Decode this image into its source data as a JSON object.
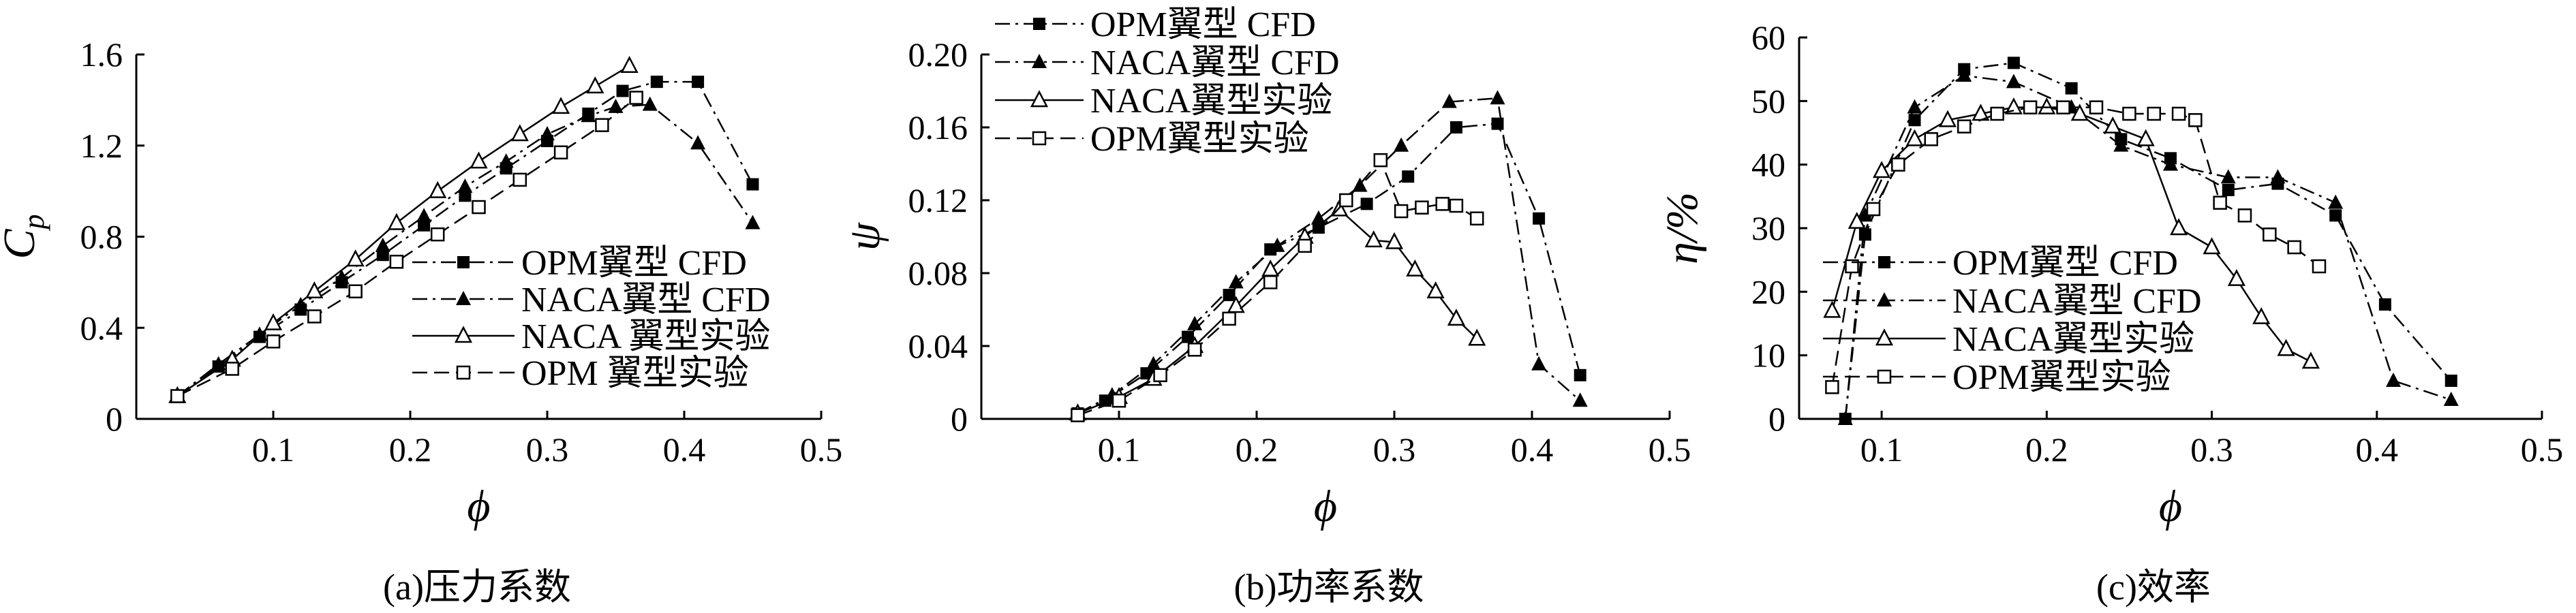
{
  "chart_data": [
    {
      "id": "a",
      "type": "scatter",
      "caption": "(a)压力系数",
      "xlabel": "ϕ",
      "ylabel": "Cp",
      "xlim": [
        0,
        0.5
      ],
      "ylim": [
        0,
        1.6
      ],
      "xticks": [
        {
          "v": 0.1,
          "label": "0.1"
        },
        {
          "v": 0.2,
          "label": "0.2"
        },
        {
          "v": 0.3,
          "label": "0.3"
        },
        {
          "v": 0.4,
          "label": "0.4"
        },
        {
          "v": 0.5,
          "label": "0.5"
        }
      ],
      "yticks": [
        {
          "v": 0,
          "label": "0"
        },
        {
          "v": 0.4,
          "label": "0.4"
        },
        {
          "v": 0.8,
          "label": "0.8"
        },
        {
          "v": 1.2,
          "label": "1.2"
        },
        {
          "v": 1.6,
          "label": "1.6"
        }
      ],
      "grid": false,
      "legend_position": "lower-right",
      "series": [
        {
          "name": "OPM翼型 CFD",
          "marker": "square-filled",
          "dash": "dashdot",
          "x": [
            0.03,
            0.06,
            0.09,
            0.12,
            0.15,
            0.18,
            0.21,
            0.24,
            0.27,
            0.3,
            0.33,
            0.355,
            0.38,
            0.41,
            0.45
          ],
          "y": [
            0.1,
            0.23,
            0.36,
            0.48,
            0.6,
            0.72,
            0.85,
            0.98,
            1.1,
            1.22,
            1.34,
            1.44,
            1.48,
            1.48,
            1.03
          ]
        },
        {
          "name": "NACA翼型 CFD",
          "marker": "triangle-filled",
          "dash": "dashdot",
          "x": [
            0.03,
            0.06,
            0.09,
            0.12,
            0.15,
            0.18,
            0.21,
            0.24,
            0.27,
            0.3,
            0.33,
            0.35,
            0.375,
            0.41,
            0.45
          ],
          "y": [
            0.1,
            0.24,
            0.37,
            0.5,
            0.62,
            0.76,
            0.89,
            1.02,
            1.13,
            1.25,
            1.33,
            1.37,
            1.38,
            1.21,
            0.86
          ]
        },
        {
          "name": "NACA 翼型实验",
          "marker": "triangle-open",
          "dash": "solid",
          "x": [
            0.03,
            0.07,
            0.1,
            0.13,
            0.16,
            0.19,
            0.22,
            0.25,
            0.28,
            0.31,
            0.335,
            0.36
          ],
          "y": [
            0.1,
            0.26,
            0.42,
            0.56,
            0.7,
            0.86,
            1.0,
            1.13,
            1.25,
            1.37,
            1.46,
            1.55
          ]
        },
        {
          "name": "OPM 翼型实验",
          "marker": "square-open",
          "dash": "dashed",
          "x": [
            0.03,
            0.07,
            0.1,
            0.13,
            0.16,
            0.19,
            0.22,
            0.25,
            0.28,
            0.31,
            0.34,
            0.365
          ],
          "y": [
            0.1,
            0.22,
            0.34,
            0.45,
            0.56,
            0.69,
            0.81,
            0.93,
            1.05,
            1.17,
            1.29,
            1.41
          ]
        }
      ]
    },
    {
      "id": "b",
      "type": "scatter",
      "caption": "(b)功率系数",
      "xlabel": "ϕ",
      "ylabel": "ψ",
      "xlim": [
        0,
        0.5
      ],
      "ylim": [
        0,
        0.2
      ],
      "xticks": [
        {
          "v": 0.1,
          "label": "0.1"
        },
        {
          "v": 0.2,
          "label": "0.2"
        },
        {
          "v": 0.3,
          "label": "0.3"
        },
        {
          "v": 0.4,
          "label": "0.4"
        },
        {
          "v": 0.5,
          "label": "0.5"
        }
      ],
      "yticks": [
        {
          "v": 0,
          "label": "0"
        },
        {
          "v": 0.04,
          "label": "0.04"
        },
        {
          "v": 0.08,
          "label": "0.08"
        },
        {
          "v": 0.12,
          "label": "0.12"
        },
        {
          "v": 0.16,
          "label": "0.16"
        },
        {
          "v": 0.2,
          "label": "0.20"
        }
      ],
      "grid": false,
      "legend_position": "top-left",
      "series": [
        {
          "name": "OPM翼型 CFD",
          "marker": "square-filled",
          "dash": "dashdot",
          "x": [
            0.07,
            0.09,
            0.12,
            0.15,
            0.18,
            0.21,
            0.245,
            0.28,
            0.31,
            0.345,
            0.375,
            0.405,
            0.435
          ],
          "y": [
            0.003,
            0.01,
            0.025,
            0.045,
            0.068,
            0.093,
            0.105,
            0.118,
            0.133,
            0.16,
            0.162,
            0.11,
            0.024
          ]
        },
        {
          "name": "NACA翼型 CFD",
          "marker": "triangle-filled",
          "dash": "dashdot",
          "x": [
            0.07,
            0.095,
            0.125,
            0.155,
            0.185,
            0.215,
            0.245,
            0.275,
            0.305,
            0.34,
            0.375,
            0.405,
            0.435
          ],
          "y": [
            0.003,
            0.013,
            0.03,
            0.052,
            0.075,
            0.095,
            0.11,
            0.128,
            0.15,
            0.174,
            0.176,
            0.03,
            0.01
          ]
        },
        {
          "name": "NACA翼型实验",
          "marker": "triangle-open",
          "dash": "solid",
          "x": [
            0.07,
            0.1,
            0.125,
            0.155,
            0.185,
            0.21,
            0.235,
            0.26,
            0.285,
            0.3,
            0.315,
            0.33,
            0.345,
            0.36
          ],
          "y": [
            0.003,
            0.012,
            0.022,
            0.04,
            0.062,
            0.082,
            0.1,
            0.115,
            0.098,
            0.097,
            0.082,
            0.07,
            0.055,
            0.044
          ]
        },
        {
          "name": "OPM翼型实验",
          "marker": "square-open",
          "dash": "dashed",
          "x": [
            0.07,
            0.1,
            0.13,
            0.155,
            0.18,
            0.21,
            0.235,
            0.265,
            0.29,
            0.305,
            0.32,
            0.335,
            0.345,
            0.36
          ],
          "y": [
            0.002,
            0.01,
            0.024,
            0.038,
            0.055,
            0.075,
            0.095,
            0.12,
            0.142,
            0.114,
            0.116,
            0.118,
            0.117,
            0.11
          ]
        }
      ]
    },
    {
      "id": "c",
      "type": "scatter",
      "caption": "(c)效率",
      "xlabel": "ϕ",
      "ylabel": "η/%",
      "xlim": [
        0.05,
        0.5
      ],
      "ylim": [
        0,
        60
      ],
      "xticks": [
        {
          "v": 0.1,
          "label": "0.1"
        },
        {
          "v": 0.2,
          "label": "0.2"
        },
        {
          "v": 0.3,
          "label": "0.3"
        },
        {
          "v": 0.4,
          "label": "0.4"
        },
        {
          "v": 0.5,
          "label": "0.5"
        }
      ],
      "yticks": [
        {
          "v": 0,
          "label": "0"
        },
        {
          "v": 10,
          "label": "10"
        },
        {
          "v": 20,
          "label": "20"
        },
        {
          "v": 30,
          "label": "30"
        },
        {
          "v": 40,
          "label": "40"
        },
        {
          "v": 50,
          "label": "50"
        },
        {
          "v": 60,
          "label": "60"
        }
      ],
      "grid": false,
      "legend_position": "lower-left",
      "series": [
        {
          "name": "OPM翼型 CFD",
          "marker": "square-filled",
          "dash": "dashdot",
          "x": [
            0.078,
            0.09,
            0.12,
            0.15,
            0.18,
            0.215,
            0.245,
            0.275,
            0.31,
            0.34,
            0.375,
            0.405,
            0.445
          ],
          "y": [
            0,
            29,
            47,
            55,
            56,
            52,
            44,
            41,
            36,
            37,
            32,
            18,
            6
          ]
        },
        {
          "name": "NACA翼型 CFD",
          "marker": "triangle-filled",
          "dash": "dashdot",
          "x": [
            0.078,
            0.09,
            0.12,
            0.15,
            0.18,
            0.215,
            0.245,
            0.275,
            0.31,
            0.34,
            0.375,
            0.41,
            0.445
          ],
          "y": [
            0,
            32,
            49,
            54,
            53,
            49,
            43,
            40,
            38,
            38,
            34,
            6,
            3
          ]
        },
        {
          "name": "NACA翼型实验",
          "marker": "triangle-open",
          "dash": "solid",
          "x": [
            0.07,
            0.085,
            0.1,
            0.12,
            0.14,
            0.16,
            0.18,
            0.2,
            0.22,
            0.24,
            0.26,
            0.28,
            0.3,
            0.315,
            0.33,
            0.345,
            0.36
          ],
          "y": [
            17,
            31,
            39,
            44,
            47,
            48,
            49,
            49,
            48,
            46,
            44,
            30,
            27,
            22,
            16,
            11,
            9
          ]
        },
        {
          "name": "OPM翼型实验",
          "marker": "square-open",
          "dash": "dashed",
          "x": [
            0.07,
            0.082,
            0.095,
            0.11,
            0.13,
            0.15,
            0.17,
            0.19,
            0.21,
            0.23,
            0.25,
            0.265,
            0.28,
            0.29,
            0.305,
            0.32,
            0.335,
            0.35,
            0.365
          ],
          "y": [
            5,
            24,
            33,
            40,
            44,
            46,
            48,
            49,
            49,
            49,
            48,
            48,
            48,
            47,
            34,
            32,
            29,
            27,
            24
          ]
        }
      ]
    }
  ]
}
